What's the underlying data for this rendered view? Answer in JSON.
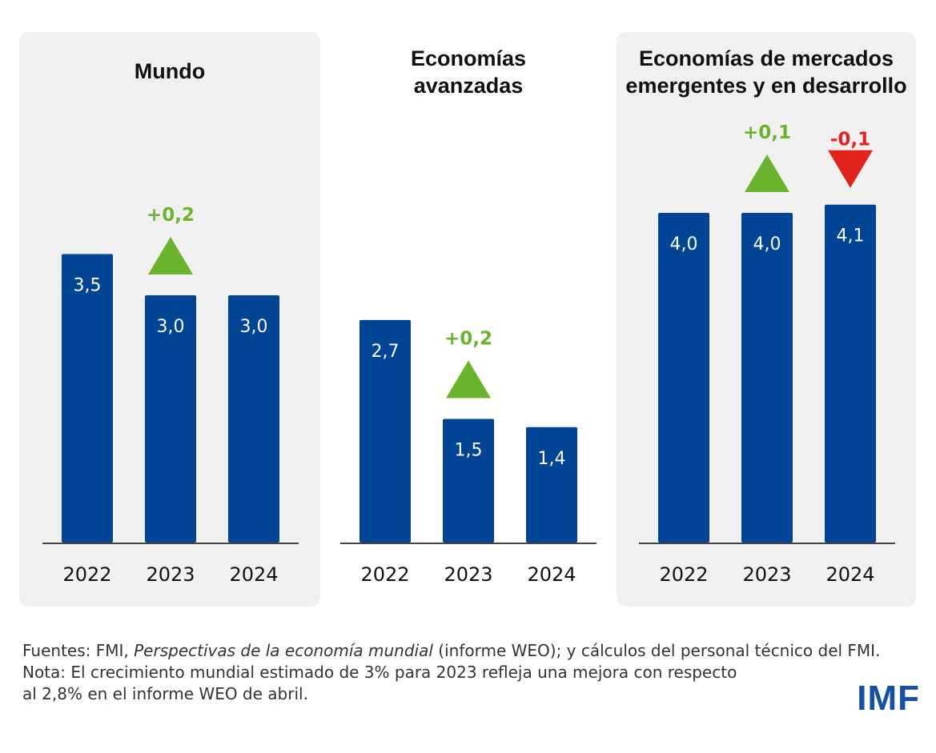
{
  "chart_data": [
    {
      "type": "bar",
      "title": "Mundo",
      "categories": [
        "2022",
        "2023",
        "2024"
      ],
      "values": [
        3.5,
        3.0,
        3.0
      ],
      "value_labels": [
        "3,5",
        "3,0",
        "3,0"
      ],
      "changes": [
        null,
        "+0,2",
        null
      ],
      "change_direction": [
        null,
        "up",
        null
      ],
      "shaded_background": true
    },
    {
      "type": "bar",
      "title": "Economías avanzadas",
      "title_lines": [
        "Economías",
        "avanzadas"
      ],
      "categories": [
        "2022",
        "2023",
        "2024"
      ],
      "values": [
        2.7,
        1.5,
        1.4
      ],
      "value_labels": [
        "2,7",
        "1,5",
        "1,4"
      ],
      "changes": [
        null,
        "+0,2",
        null
      ],
      "change_direction": [
        null,
        "up",
        null
      ],
      "shaded_background": false
    },
    {
      "type": "bar",
      "title": "Economías de mercados emergentes y en desarrollo",
      "title_lines": [
        "Economías de mercados",
        "emergentes y en desarrollo"
      ],
      "categories": [
        "2022",
        "2023",
        "2024"
      ],
      "values": [
        4.0,
        4.0,
        4.1
      ],
      "value_labels": [
        "4,0",
        "4,0",
        "4,1"
      ],
      "changes": [
        null,
        "+0,1",
        "-0,1"
      ],
      "change_direction": [
        null,
        "up",
        "down"
      ],
      "shaded_background": true
    }
  ],
  "colors": {
    "bar": "#004595",
    "up": "#6ab42d",
    "down": "#e0231b",
    "panel": "#f0f0f0",
    "baseline": "#444444"
  },
  "footer": {
    "sources_prefix": "Fuentes: FMI, ",
    "sources_italic": "Perspectivas de la economía mundial",
    "sources_suffix": " (informe WEO); y cálculos del personal técnico del FMI.",
    "note_line1": "Nota: El crecimiento mundial estimado de 3% para 2023 refleja una mejora con respecto",
    "note_line2": "al 2,8% en el informe WEO de abril."
  },
  "logo": "IMF"
}
